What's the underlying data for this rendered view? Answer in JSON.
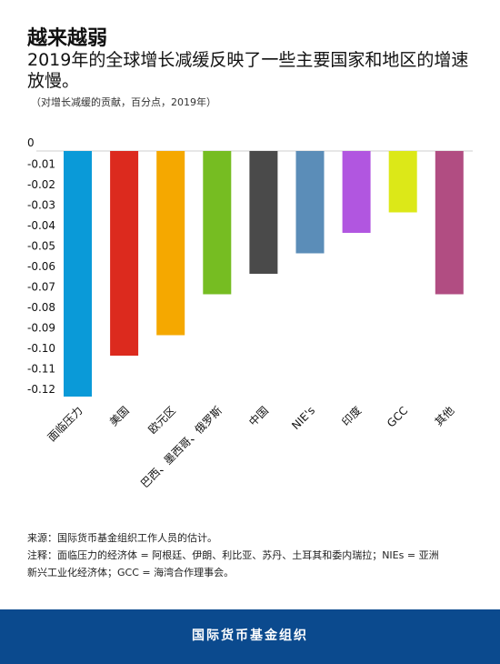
{
  "header": {
    "title": "越来越弱",
    "subtitle": "2019年的全球增长减缓反映了一些主要国家和地区的增速放慢。",
    "note": "（对增长减缓的贡献，百分点，2019年）"
  },
  "chart_data": {
    "type": "bar",
    "categories": [
      "面临压力",
      "美国",
      "欧元区",
      "巴西、墨西哥、俄罗斯",
      "中国",
      "NIE's",
      "印度",
      "GCC",
      "其他"
    ],
    "values": [
      -0.12,
      -0.1,
      -0.09,
      -0.07,
      -0.06,
      -0.05,
      -0.04,
      -0.03,
      -0.07
    ],
    "colors": [
      "#0a9ad8",
      "#dc2a1e",
      "#f5a800",
      "#76bd22",
      "#4a4a4a",
      "#5b8db8",
      "#b156e0",
      "#dce818",
      "#b14d82"
    ],
    "yticks": [
      "0",
      "-0.01",
      "-0.02",
      "-0.03",
      "-0.04",
      "-0.05",
      "-0.06",
      "-0.07",
      "-0.08",
      "-0.09",
      "-0.10",
      "-0.11",
      "-0.12"
    ],
    "ylim": [
      -0.12,
      0
    ],
    "grid": false,
    "legend": "none"
  },
  "footer": {
    "source": "来源：国际货币基金组织工作人员的估计。",
    "note1": "注释：面临压力的经济体 = 阿根廷、伊朗、利比亚、苏丹、土耳其和委内瑞拉；NIEs = 亚洲",
    "note2": "新兴工业化经济体；GCC = 海湾合作理事会。",
    "org": "国际货币基金组织"
  }
}
